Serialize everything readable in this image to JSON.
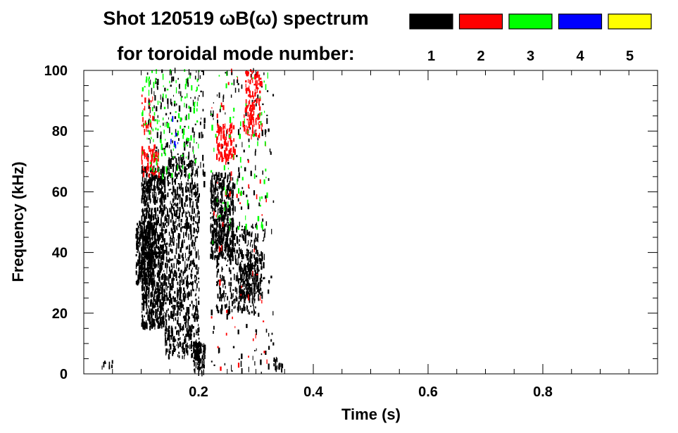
{
  "chart_data": {
    "type": "heatmap",
    "title_line1": "Shot 120519 ωB(ω) spectrum",
    "title_line2": "for toroidal mode number:",
    "xlabel": "Time (s)",
    "ylabel": "Frequency (kHz)",
    "xlim": [
      0.0,
      1.0
    ],
    "ylim": [
      0,
      100
    ],
    "xticks": [
      0.2,
      0.4,
      0.6,
      0.8
    ],
    "xtick_labels": [
      "0.2",
      "0.4",
      "0.6",
      "0.8"
    ],
    "yticks": [
      0,
      20,
      40,
      60,
      80,
      100
    ],
    "ytick_labels": [
      "0",
      "20",
      "40",
      "60",
      "80",
      "100"
    ],
    "legend": [
      {
        "label": "1",
        "color": "#000000"
      },
      {
        "label": "2",
        "color": "#ff0000"
      },
      {
        "label": "3",
        "color": "#00ff00"
      },
      {
        "label": "4",
        "color": "#0000ff"
      },
      {
        "label": "5",
        "color": "#ffff00"
      }
    ],
    "regions": [
      {
        "mode": 1,
        "t": [
          0.09,
          0.12
        ],
        "f": [
          30,
          50
        ],
        "density": 0.9
      },
      {
        "mode": 1,
        "t": [
          0.1,
          0.14
        ],
        "f": [
          15,
          68
        ],
        "density": 0.7
      },
      {
        "mode": 1,
        "t": [
          0.14,
          0.2
        ],
        "f": [
          5,
          72
        ],
        "density": 0.35
      },
      {
        "mode": 1,
        "t": [
          0.19,
          0.21
        ],
        "f": [
          0,
          10
        ],
        "density": 0.8
      },
      {
        "mode": 1,
        "t": [
          0.11,
          0.21
        ],
        "f": [
          60,
          100
        ],
        "density": 0.08
      },
      {
        "mode": 1,
        "t": [
          0.22,
          0.26
        ],
        "f": [
          38,
          66
        ],
        "density": 0.6
      },
      {
        "mode": 1,
        "t": [
          0.23,
          0.3
        ],
        "f": [
          20,
          50
        ],
        "density": 0.25
      },
      {
        "mode": 1,
        "t": [
          0.27,
          0.31
        ],
        "f": [
          25,
          40
        ],
        "density": 0.55
      },
      {
        "mode": 1,
        "t": [
          0.22,
          0.33
        ],
        "f": [
          0,
          100
        ],
        "density": 0.03
      },
      {
        "mode": 1,
        "t": [
          0.33,
          0.345
        ],
        "f": [
          1,
          5
        ],
        "density": 0.6
      },
      {
        "mode": 1,
        "t": [
          0.03,
          0.05
        ],
        "f": [
          2,
          4
        ],
        "density": 0.4
      },
      {
        "mode": 2,
        "t": [
          0.1,
          0.13
        ],
        "f": [
          65,
          75
        ],
        "density": 0.35
      },
      {
        "mode": 2,
        "t": [
          0.1,
          0.12
        ],
        "f": [
          78,
          92
        ],
        "density": 0.15
      },
      {
        "mode": 2,
        "t": [
          0.23,
          0.26
        ],
        "f": [
          70,
          82
        ],
        "density": 0.5
      },
      {
        "mode": 2,
        "t": [
          0.28,
          0.31
        ],
        "f": [
          78,
          100
        ],
        "density": 0.35
      },
      {
        "mode": 2,
        "t": [
          0.22,
          0.32
        ],
        "f": [
          0,
          100
        ],
        "density": 0.01
      },
      {
        "mode": 3,
        "t": [
          0.1,
          0.2
        ],
        "f": [
          65,
          100
        ],
        "density": 0.06
      },
      {
        "mode": 3,
        "t": [
          0.22,
          0.32
        ],
        "f": [
          40,
          100
        ],
        "density": 0.02
      },
      {
        "mode": 4,
        "t": [
          0.15,
          0.18
        ],
        "f": [
          75,
          85
        ],
        "density": 0.04
      }
    ]
  }
}
